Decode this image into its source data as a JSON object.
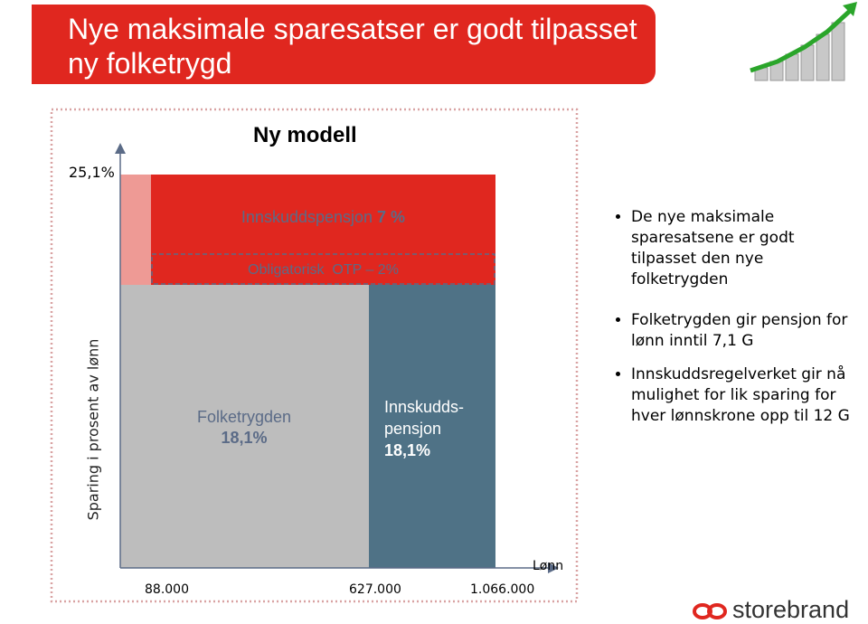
{
  "header": {
    "title": "Nye maksimale sparesatser er godt tilpasset ny folketrygd"
  },
  "diagram": {
    "heading": "Ny modell",
    "y_axis_label": "Sparing i prosent av lønn",
    "y_top_label": "25,1%",
    "x_axis_label": "Lønn",
    "x_labels": [
      "88.000",
      "627.000",
      "1.066.000"
    ],
    "blocks": {
      "innskudd_top": {
        "label": "Innskuddspensjon",
        "value": "7 %"
      },
      "otp": {
        "label": "Obligatorisk  OTP – 2%"
      },
      "folketrygden": {
        "label": "Folketrygden",
        "value": "18,1%"
      },
      "innskudd_bottom": {
        "label_lines": [
          "Innskudds-",
          "pensjon"
        ],
        "value": "18,1%"
      }
    }
  },
  "bullets": [
    "De nye maksimale sparesatsene er godt tilpasset den nye folketrygden",
    "Folketrygden gir pensjon for lønn inntil 7,1 G",
    "Innskuddsregelverket gir nå mulighet for lik sparing for hver lønnskrone opp til 12 G"
  ],
  "logo": {
    "text": "storebrand"
  }
}
